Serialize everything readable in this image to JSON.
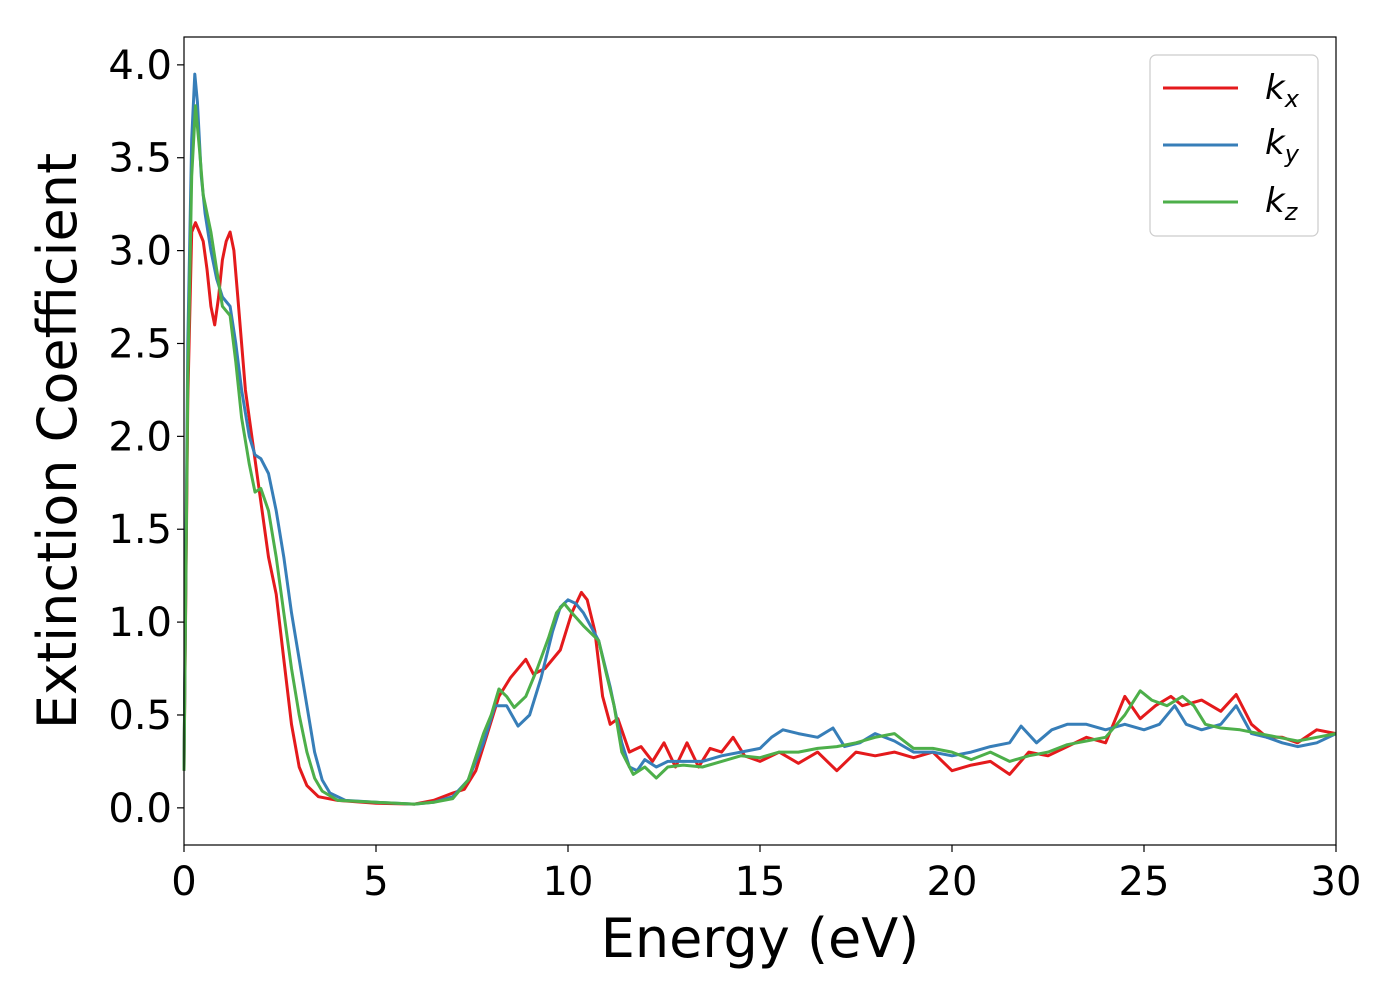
{
  "chart_data": {
    "type": "line",
    "xlabel": "Energy (eV)",
    "ylabel": "Extinction Coefficient",
    "xlim": [
      0,
      30
    ],
    "ylim": [
      -0.2,
      4.15
    ],
    "x_ticks": [
      0,
      5,
      10,
      15,
      20,
      25,
      30
    ],
    "y_ticks": [
      "0.0",
      "0.5",
      "1.0",
      "1.5",
      "2.0",
      "2.5",
      "3.0",
      "3.5",
      "4.0"
    ],
    "grid": false,
    "legend_position": "top-right",
    "series": [
      {
        "name": "k",
        "subscript": "x",
        "color": "#e41a1c",
        "points": [
          [
            0,
            0.2
          ],
          [
            0.1,
            2.2
          ],
          [
            0.2,
            3.1
          ],
          [
            0.3,
            3.15
          ],
          [
            0.4,
            3.1
          ],
          [
            0.5,
            3.05
          ],
          [
            0.6,
            2.9
          ],
          [
            0.7,
            2.7
          ],
          [
            0.8,
            2.6
          ],
          [
            0.9,
            2.75
          ],
          [
            1.0,
            2.95
          ],
          [
            1.1,
            3.05
          ],
          [
            1.2,
            3.1
          ],
          [
            1.3,
            3.0
          ],
          [
            1.4,
            2.75
          ],
          [
            1.5,
            2.5
          ],
          [
            1.6,
            2.25
          ],
          [
            1.8,
            1.95
          ],
          [
            2.0,
            1.65
          ],
          [
            2.2,
            1.35
          ],
          [
            2.4,
            1.15
          ],
          [
            2.6,
            0.8
          ],
          [
            2.8,
            0.45
          ],
          [
            3.0,
            0.22
          ],
          [
            3.2,
            0.12
          ],
          [
            3.5,
            0.06
          ],
          [
            4.0,
            0.04
          ],
          [
            5.0,
            0.025
          ],
          [
            6.0,
            0.02
          ],
          [
            6.5,
            0.04
          ],
          [
            7.0,
            0.08
          ],
          [
            7.3,
            0.1
          ],
          [
            7.6,
            0.2
          ],
          [
            7.9,
            0.4
          ],
          [
            8.2,
            0.6
          ],
          [
            8.5,
            0.7
          ],
          [
            8.9,
            0.8
          ],
          [
            9.1,
            0.72
          ],
          [
            9.4,
            0.75
          ],
          [
            9.8,
            0.85
          ],
          [
            10.1,
            1.05
          ],
          [
            10.35,
            1.16
          ],
          [
            10.5,
            1.12
          ],
          [
            10.7,
            0.95
          ],
          [
            10.9,
            0.6
          ],
          [
            11.1,
            0.45
          ],
          [
            11.3,
            0.48
          ],
          [
            11.6,
            0.3
          ],
          [
            11.9,
            0.33
          ],
          [
            12.2,
            0.25
          ],
          [
            12.5,
            0.35
          ],
          [
            12.8,
            0.22
          ],
          [
            13.1,
            0.35
          ],
          [
            13.4,
            0.22
          ],
          [
            13.7,
            0.32
          ],
          [
            14.0,
            0.3
          ],
          [
            14.3,
            0.38
          ],
          [
            14.6,
            0.28
          ],
          [
            15.0,
            0.25
          ],
          [
            15.5,
            0.3
          ],
          [
            16.0,
            0.24
          ],
          [
            16.5,
            0.3
          ],
          [
            17.0,
            0.2
          ],
          [
            17.5,
            0.3
          ],
          [
            18.0,
            0.28
          ],
          [
            18.5,
            0.3
          ],
          [
            19.0,
            0.27
          ],
          [
            19.5,
            0.3
          ],
          [
            20.0,
            0.2
          ],
          [
            20.5,
            0.23
          ],
          [
            21.0,
            0.25
          ],
          [
            21.5,
            0.18
          ],
          [
            22.0,
            0.3
          ],
          [
            22.5,
            0.28
          ],
          [
            23.0,
            0.33
          ],
          [
            23.5,
            0.38
          ],
          [
            24.0,
            0.35
          ],
          [
            24.5,
            0.6
          ],
          [
            24.9,
            0.48
          ],
          [
            25.3,
            0.55
          ],
          [
            25.7,
            0.6
          ],
          [
            26.0,
            0.55
          ],
          [
            26.5,
            0.58
          ],
          [
            27.0,
            0.52
          ],
          [
            27.4,
            0.61
          ],
          [
            27.8,
            0.45
          ],
          [
            28.2,
            0.38
          ],
          [
            28.6,
            0.38
          ],
          [
            29.0,
            0.35
          ],
          [
            29.5,
            0.42
          ],
          [
            30.0,
            0.4
          ]
        ]
      },
      {
        "name": "k",
        "subscript": "y",
        "color": "#377eb8",
        "points": [
          [
            0,
            0.2
          ],
          [
            0.1,
            2.5
          ],
          [
            0.2,
            3.6
          ],
          [
            0.28,
            3.95
          ],
          [
            0.35,
            3.8
          ],
          [
            0.45,
            3.4
          ],
          [
            0.55,
            3.2
          ],
          [
            0.7,
            3.0
          ],
          [
            0.85,
            2.85
          ],
          [
            1.0,
            2.75
          ],
          [
            1.2,
            2.7
          ],
          [
            1.35,
            2.5
          ],
          [
            1.5,
            2.25
          ],
          [
            1.7,
            2.0
          ],
          [
            1.85,
            1.9
          ],
          [
            2.0,
            1.88
          ],
          [
            2.2,
            1.8
          ],
          [
            2.4,
            1.6
          ],
          [
            2.6,
            1.35
          ],
          [
            2.8,
            1.05
          ],
          [
            3.0,
            0.8
          ],
          [
            3.2,
            0.55
          ],
          [
            3.4,
            0.3
          ],
          [
            3.6,
            0.15
          ],
          [
            3.8,
            0.08
          ],
          [
            4.2,
            0.04
          ],
          [
            5.0,
            0.03
          ],
          [
            6.0,
            0.02
          ],
          [
            6.5,
            0.03
          ],
          [
            7.0,
            0.06
          ],
          [
            7.4,
            0.15
          ],
          [
            7.8,
            0.35
          ],
          [
            8.1,
            0.55
          ],
          [
            8.4,
            0.55
          ],
          [
            8.7,
            0.44
          ],
          [
            9.0,
            0.5
          ],
          [
            9.3,
            0.7
          ],
          [
            9.6,
            0.95
          ],
          [
            9.8,
            1.08
          ],
          [
            10.0,
            1.12
          ],
          [
            10.2,
            1.1
          ],
          [
            10.4,
            1.05
          ],
          [
            10.8,
            0.9
          ],
          [
            11.1,
            0.65
          ],
          [
            11.4,
            0.35
          ],
          [
            11.6,
            0.22
          ],
          [
            11.8,
            0.2
          ],
          [
            12.0,
            0.26
          ],
          [
            12.3,
            0.22
          ],
          [
            12.6,
            0.25
          ],
          [
            13.0,
            0.25
          ],
          [
            13.5,
            0.25
          ],
          [
            14.0,
            0.28
          ],
          [
            14.5,
            0.3
          ],
          [
            15.0,
            0.32
          ],
          [
            15.3,
            0.38
          ],
          [
            15.6,
            0.42
          ],
          [
            16.0,
            0.4
          ],
          [
            16.5,
            0.38
          ],
          [
            16.9,
            0.43
          ],
          [
            17.2,
            0.33
          ],
          [
            17.6,
            0.35
          ],
          [
            18.0,
            0.4
          ],
          [
            18.5,
            0.36
          ],
          [
            19.0,
            0.3
          ],
          [
            19.5,
            0.3
          ],
          [
            20.0,
            0.28
          ],
          [
            20.5,
            0.3
          ],
          [
            21.0,
            0.33
          ],
          [
            21.5,
            0.35
          ],
          [
            21.8,
            0.44
          ],
          [
            22.2,
            0.35
          ],
          [
            22.6,
            0.42
          ],
          [
            23.0,
            0.45
          ],
          [
            23.5,
            0.45
          ],
          [
            24.0,
            0.42
          ],
          [
            24.5,
            0.45
          ],
          [
            25.0,
            0.42
          ],
          [
            25.4,
            0.45
          ],
          [
            25.8,
            0.55
          ],
          [
            26.1,
            0.45
          ],
          [
            26.5,
            0.42
          ],
          [
            27.0,
            0.45
          ],
          [
            27.4,
            0.55
          ],
          [
            27.8,
            0.4
          ],
          [
            28.2,
            0.38
          ],
          [
            28.6,
            0.35
          ],
          [
            29.0,
            0.33
          ],
          [
            29.5,
            0.35
          ],
          [
            30.0,
            0.4
          ]
        ]
      },
      {
        "name": "k",
        "subscript": "z",
        "color": "#4daf4a",
        "points": [
          [
            0,
            0.2
          ],
          [
            0.1,
            2.3
          ],
          [
            0.2,
            3.4
          ],
          [
            0.3,
            3.78
          ],
          [
            0.4,
            3.55
          ],
          [
            0.5,
            3.3
          ],
          [
            0.7,
            3.1
          ],
          [
            0.85,
            2.9
          ],
          [
            1.0,
            2.7
          ],
          [
            1.2,
            2.65
          ],
          [
            1.35,
            2.4
          ],
          [
            1.5,
            2.1
          ],
          [
            1.7,
            1.85
          ],
          [
            1.85,
            1.7
          ],
          [
            2.0,
            1.72
          ],
          [
            2.2,
            1.6
          ],
          [
            2.4,
            1.35
          ],
          [
            2.6,
            1.05
          ],
          [
            2.8,
            0.75
          ],
          [
            3.0,
            0.5
          ],
          [
            3.2,
            0.3
          ],
          [
            3.4,
            0.16
          ],
          [
            3.6,
            0.09
          ],
          [
            4.0,
            0.04
          ],
          [
            5.0,
            0.03
          ],
          [
            6.0,
            0.02
          ],
          [
            6.5,
            0.03
          ],
          [
            7.0,
            0.05
          ],
          [
            7.4,
            0.15
          ],
          [
            7.8,
            0.4
          ],
          [
            8.0,
            0.5
          ],
          [
            8.2,
            0.64
          ],
          [
            8.4,
            0.6
          ],
          [
            8.6,
            0.54
          ],
          [
            8.9,
            0.6
          ],
          [
            9.2,
            0.75
          ],
          [
            9.5,
            0.92
          ],
          [
            9.7,
            1.05
          ],
          [
            9.9,
            1.1
          ],
          [
            10.1,
            1.05
          ],
          [
            10.4,
            0.98
          ],
          [
            10.8,
            0.9
          ],
          [
            11.0,
            0.72
          ],
          [
            11.2,
            0.55
          ],
          [
            11.4,
            0.3
          ],
          [
            11.7,
            0.18
          ],
          [
            12.0,
            0.22
          ],
          [
            12.3,
            0.16
          ],
          [
            12.6,
            0.22
          ],
          [
            13.0,
            0.23
          ],
          [
            13.5,
            0.22
          ],
          [
            14.0,
            0.25
          ],
          [
            14.5,
            0.28
          ],
          [
            15.0,
            0.27
          ],
          [
            15.5,
            0.3
          ],
          [
            16.0,
            0.3
          ],
          [
            16.5,
            0.32
          ],
          [
            17.0,
            0.33
          ],
          [
            17.5,
            0.35
          ],
          [
            18.0,
            0.38
          ],
          [
            18.5,
            0.4
          ],
          [
            19.0,
            0.32
          ],
          [
            19.5,
            0.32
          ],
          [
            20.0,
            0.3
          ],
          [
            20.5,
            0.26
          ],
          [
            21.0,
            0.3
          ],
          [
            21.5,
            0.25
          ],
          [
            22.0,
            0.28
          ],
          [
            22.5,
            0.3
          ],
          [
            23.0,
            0.34
          ],
          [
            23.5,
            0.36
          ],
          [
            24.0,
            0.38
          ],
          [
            24.5,
            0.5
          ],
          [
            24.9,
            0.63
          ],
          [
            25.2,
            0.58
          ],
          [
            25.6,
            0.55
          ],
          [
            26.0,
            0.6
          ],
          [
            26.3,
            0.55
          ],
          [
            26.6,
            0.45
          ],
          [
            27.0,
            0.43
          ],
          [
            27.5,
            0.42
          ],
          [
            28.0,
            0.4
          ],
          [
            28.5,
            0.38
          ],
          [
            29.0,
            0.36
          ],
          [
            29.5,
            0.38
          ],
          [
            30.0,
            0.4
          ]
        ]
      }
    ]
  }
}
